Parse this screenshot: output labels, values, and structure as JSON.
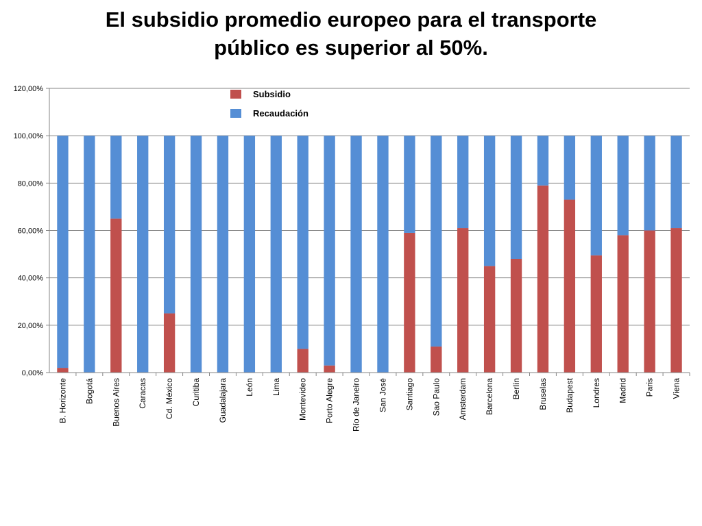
{
  "chart_data": {
    "type": "bar",
    "stacked": true,
    "title_lines": [
      "El subsidio promedio europeo para el transporte",
      "público es superior al 50%."
    ],
    "categories": [
      "B. Horizonte",
      "Bogotá",
      "Buenos Aires",
      "Caracas",
      "Cd. México",
      "Curitiba",
      "Guadalajara",
      "León",
      "Lima",
      "Montevideo",
      "Porto Alegre",
      "Río de Janeiro",
      "San José",
      "Santiago",
      "Sao Paulo",
      "Amsterdam",
      "Barcelona",
      "Berlín",
      "Bruselas",
      "Budapest",
      "Londres",
      "Madrid",
      "Paris",
      "Viena"
    ],
    "series": [
      {
        "name": "Subsidio",
        "color": "#c0504d",
        "values": [
          0.02,
          0,
          0.65,
          0,
          0.25,
          0,
          0,
          0,
          0,
          0.1,
          0.03,
          0,
          0,
          0.59,
          0.11,
          0.61,
          0.45,
          0.48,
          0.79,
          0.73,
          0.495,
          0.58,
          0.6,
          0.61
        ]
      },
      {
        "name": "Recaudación",
        "color": "#558ed5",
        "values": [
          0.98,
          1,
          0.35,
          1,
          0.75,
          1,
          1,
          1,
          1,
          0.9,
          0.97,
          1,
          1,
          0.41,
          0.89,
          0.39,
          0.55,
          0.52,
          0.21,
          0.27,
          0.505,
          0.42,
          0.4,
          0.39
        ]
      }
    ],
    "ylim": [
      0,
      1.2
    ],
    "y_ticks": [
      0,
      0.2,
      0.4,
      0.6,
      0.8,
      1.0,
      1.2
    ],
    "y_tick_labels": [
      "0,00%",
      "20,00%",
      "40,00%",
      "60,00%",
      "80,00%",
      "100,00%",
      "120,00%"
    ],
    "gridlines": true,
    "legend_position": "top-center",
    "xlabel": "",
    "ylabel": ""
  }
}
